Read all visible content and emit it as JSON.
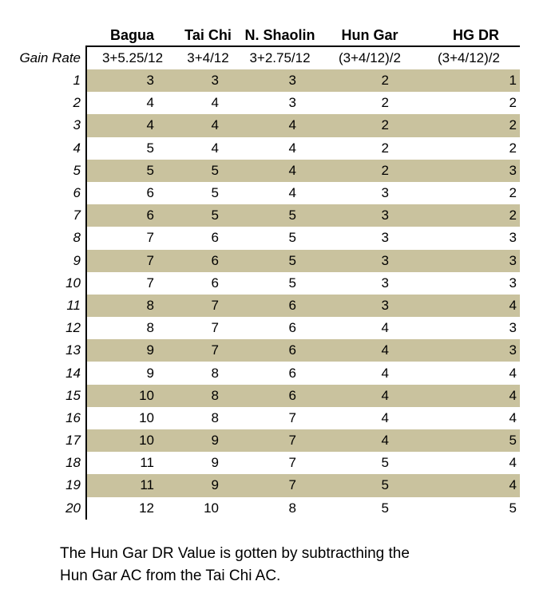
{
  "table": {
    "headers": [
      "",
      "Bagua",
      "Tai Chi",
      "N. Shaolin",
      "Hun Gar",
      "HG DR"
    ],
    "gain_rate_label": "Gain Rate",
    "gain_rates": [
      "3+5.25/12",
      "3+4/12",
      "3+2.75/12",
      "(3+4/12)/2",
      "(3+4/12)/2"
    ],
    "band_color": "#c9c29e",
    "rows": [
      {
        "level": "1",
        "values": [
          "3",
          "3",
          "3",
          "2",
          "1"
        ]
      },
      {
        "level": "2",
        "values": [
          "4",
          "4",
          "3",
          "2",
          "2"
        ]
      },
      {
        "level": "3",
        "values": [
          "4",
          "4",
          "4",
          "2",
          "2"
        ]
      },
      {
        "level": "4",
        "values": [
          "5",
          "4",
          "4",
          "2",
          "2"
        ]
      },
      {
        "level": "5",
        "values": [
          "5",
          "5",
          "4",
          "2",
          "3"
        ]
      },
      {
        "level": "6",
        "values": [
          "6",
          "5",
          "4",
          "3",
          "2"
        ]
      },
      {
        "level": "7",
        "values": [
          "6",
          "5",
          "5",
          "3",
          "2"
        ]
      },
      {
        "level": "8",
        "values": [
          "7",
          "6",
          "5",
          "3",
          "3"
        ]
      },
      {
        "level": "9",
        "values": [
          "7",
          "6",
          "5",
          "3",
          "3"
        ]
      },
      {
        "level": "10",
        "values": [
          "7",
          "6",
          "5",
          "3",
          "3"
        ]
      },
      {
        "level": "11",
        "values": [
          "8",
          "7",
          "6",
          "3",
          "4"
        ]
      },
      {
        "level": "12",
        "values": [
          "8",
          "7",
          "6",
          "4",
          "3"
        ]
      },
      {
        "level": "13",
        "values": [
          "9",
          "7",
          "6",
          "4",
          "3"
        ]
      },
      {
        "level": "14",
        "values": [
          "9",
          "8",
          "6",
          "4",
          "4"
        ]
      },
      {
        "level": "15",
        "values": [
          "10",
          "8",
          "6",
          "4",
          "4"
        ]
      },
      {
        "level": "16",
        "values": [
          "10",
          "8",
          "7",
          "4",
          "4"
        ]
      },
      {
        "level": "17",
        "values": [
          "10",
          "9",
          "7",
          "4",
          "5"
        ]
      },
      {
        "level": "18",
        "values": [
          "11",
          "9",
          "7",
          "5",
          "4"
        ]
      },
      {
        "level": "19",
        "values": [
          "11",
          "9",
          "7",
          "5",
          "4"
        ]
      },
      {
        "level": "20",
        "values": [
          "12",
          "10",
          "8",
          "5",
          "5"
        ]
      }
    ]
  },
  "note": {
    "line1": "The Hun Gar DR Value is gotten by subtracthing the",
    "line2": "Hun Gar AC from the Tai Chi AC."
  }
}
